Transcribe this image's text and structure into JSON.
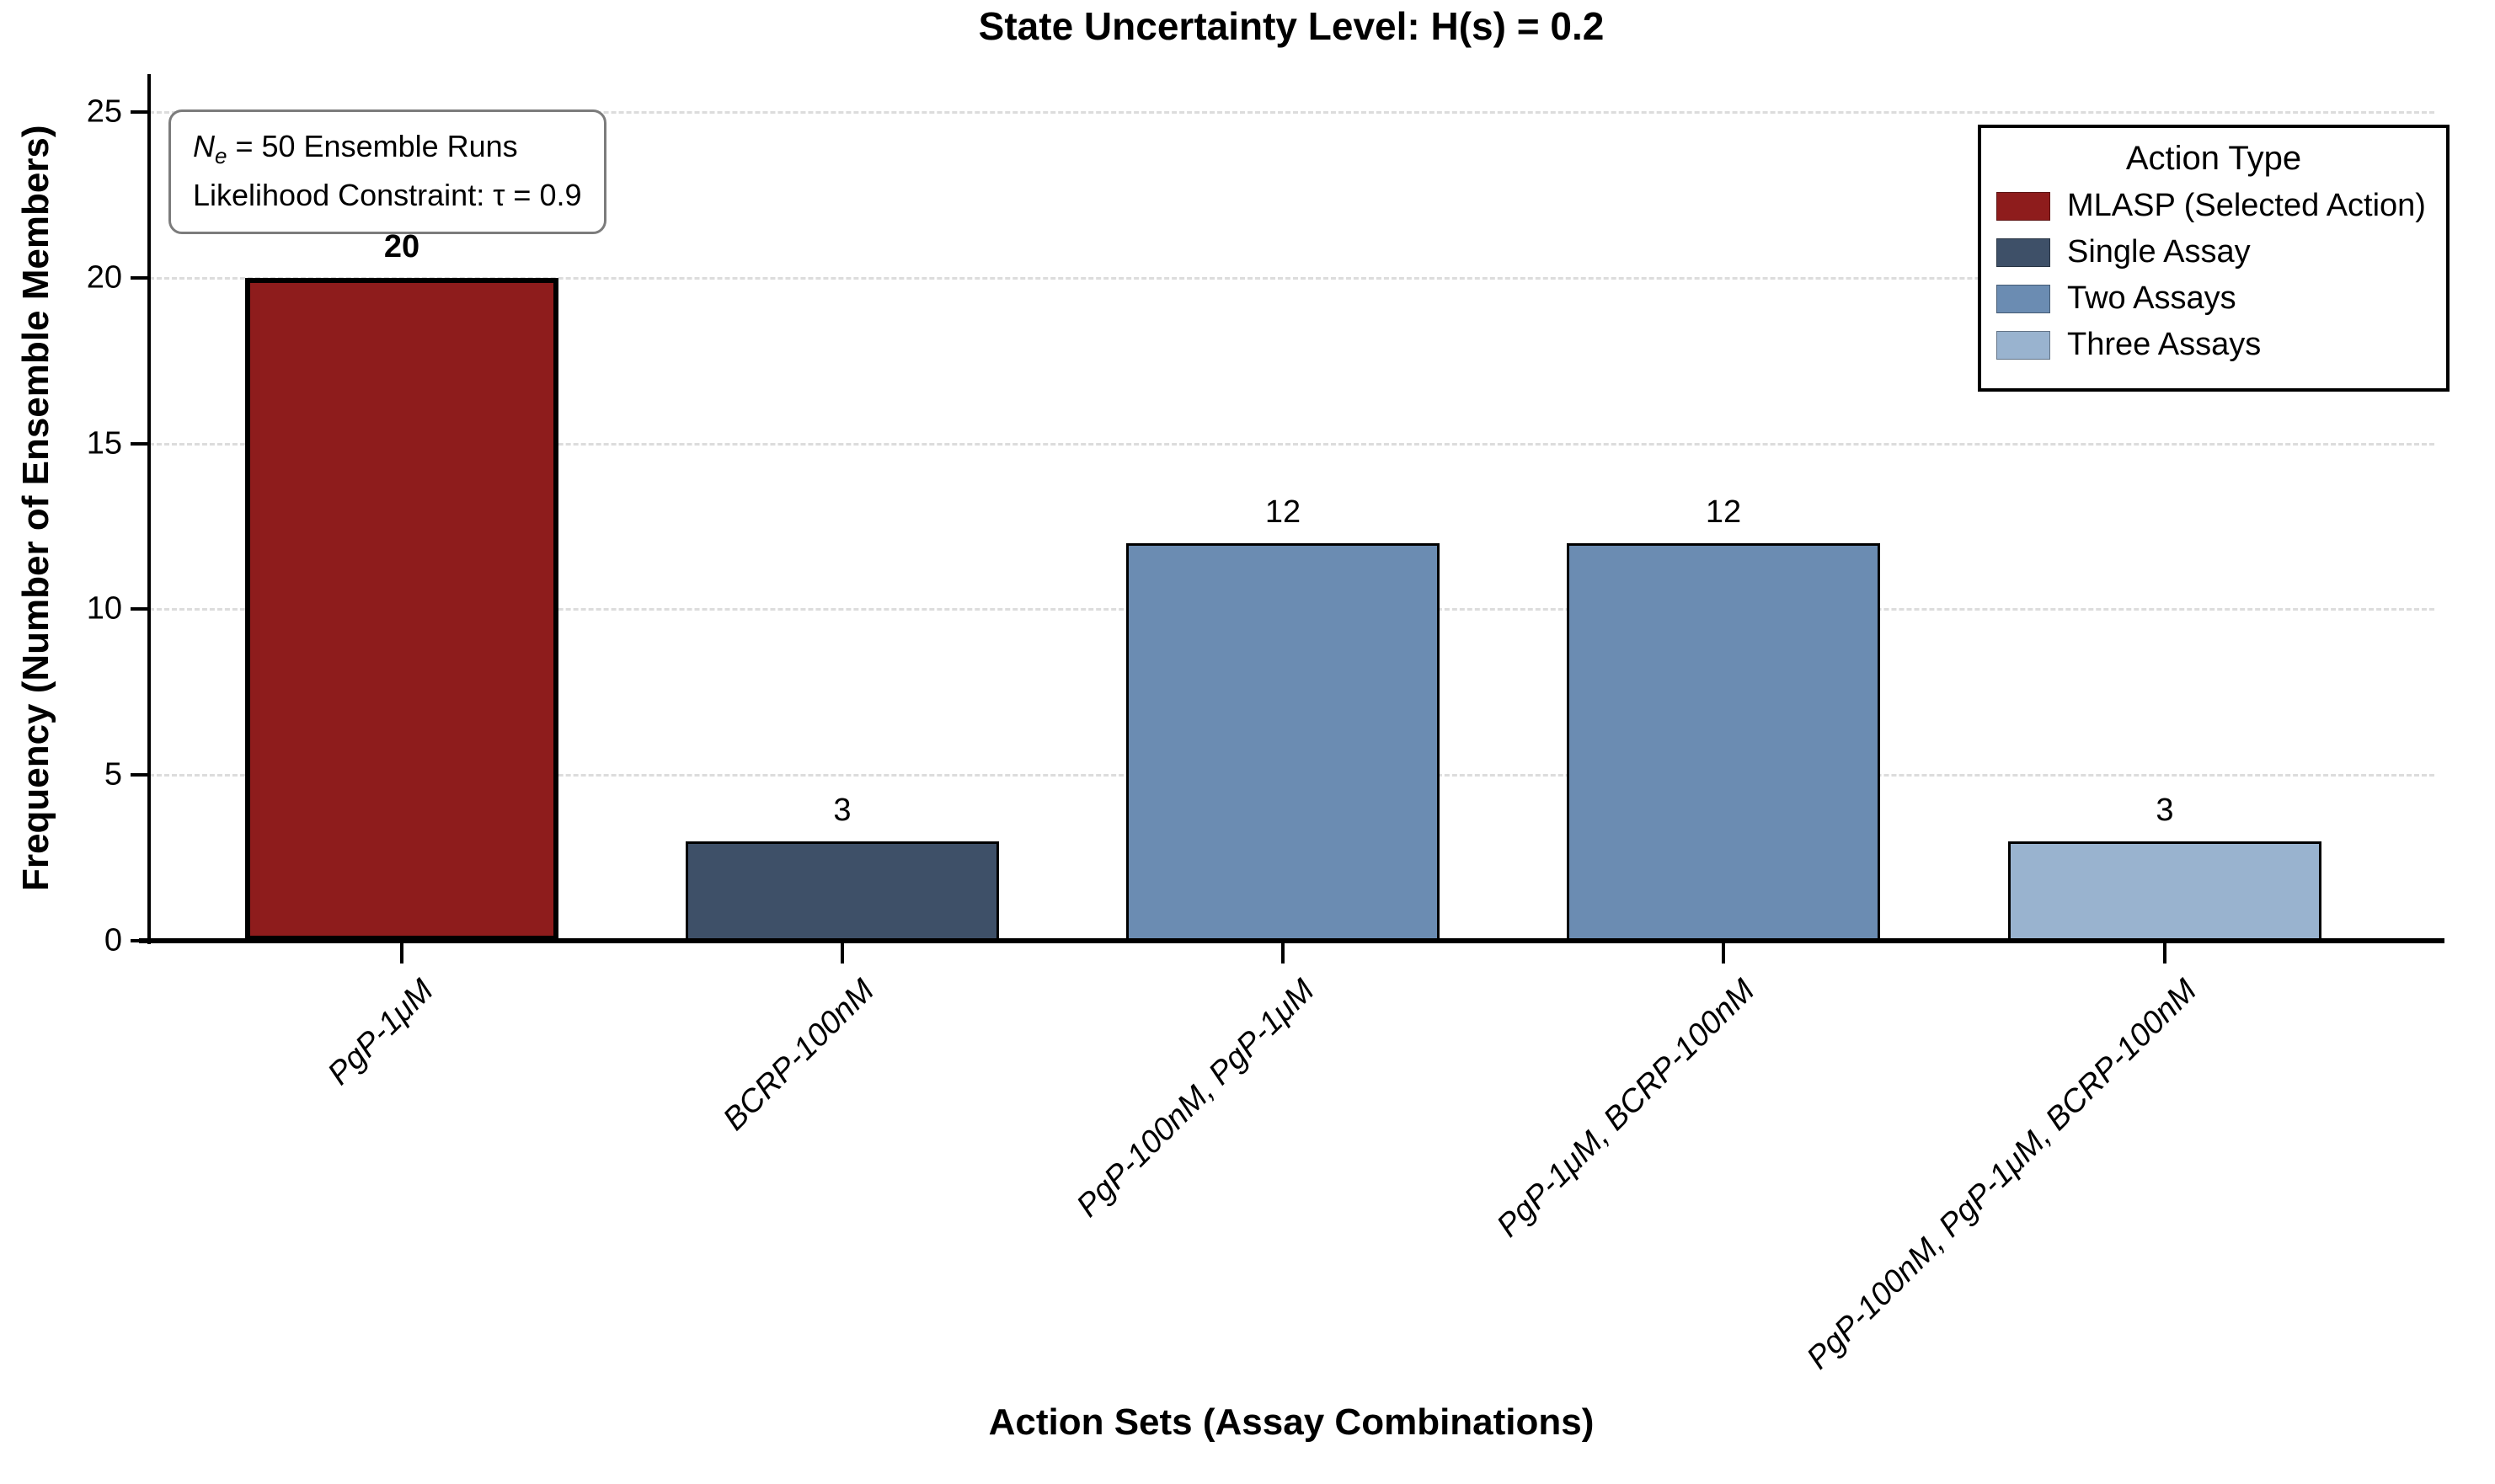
{
  "title": "State Uncertainty Level: H(s) = 0.2",
  "annotation": {
    "n_symbol": "N",
    "n_subscript": "e",
    "line1_rest": " = 50 Ensemble Runs",
    "line2": "Likelihood Constraint: τ = 0.9"
  },
  "legend": {
    "title": "Action Type",
    "items": [
      {
        "label": "MLASP (Selected Action)",
        "color": "#8e1c1c"
      },
      {
        "label": "Single Assay",
        "color": "#3e5068"
      },
      {
        "label": "Two Assays",
        "color": "#6b8cb2"
      },
      {
        "label": "Three Assays",
        "color": "#99b3cf"
      }
    ]
  },
  "chart_data": {
    "type": "bar",
    "title": "State Uncertainty Level: H(s) = 0.2",
    "xlabel": "Action Sets (Assay Combinations)",
    "ylabel": "Frequency (Number of Ensemble Members)",
    "categories": [
      "PgP-1μM",
      "BCRP-100nM",
      "PgP-100nM, PgP-1μM",
      "PgP-1μM, BCRP-100nM",
      "PgP-100nM, PgP-1μM, BCRP-100nM"
    ],
    "values": [
      20,
      3,
      12,
      12,
      3
    ],
    "bar_colors": [
      "#8e1c1c",
      "#3e5068",
      "#6b8cb2",
      "#6b8cb2",
      "#99b3cf"
    ],
    "bar_types": [
      "MLASP (Selected Action)",
      "Single Assay",
      "Two Assays",
      "Two Assays",
      "Three Assays"
    ],
    "highlighted_bar": 0,
    "value_labels": [
      "20",
      "3",
      "12",
      "12",
      "3"
    ],
    "yticks": [
      0,
      5,
      10,
      15,
      20,
      25
    ],
    "ylim": [
      0,
      25
    ],
    "grid": "horizontal dashed",
    "legend_position": "upper right",
    "axis_color": "#000000",
    "gridline_color": "#dcdcdc"
  }
}
